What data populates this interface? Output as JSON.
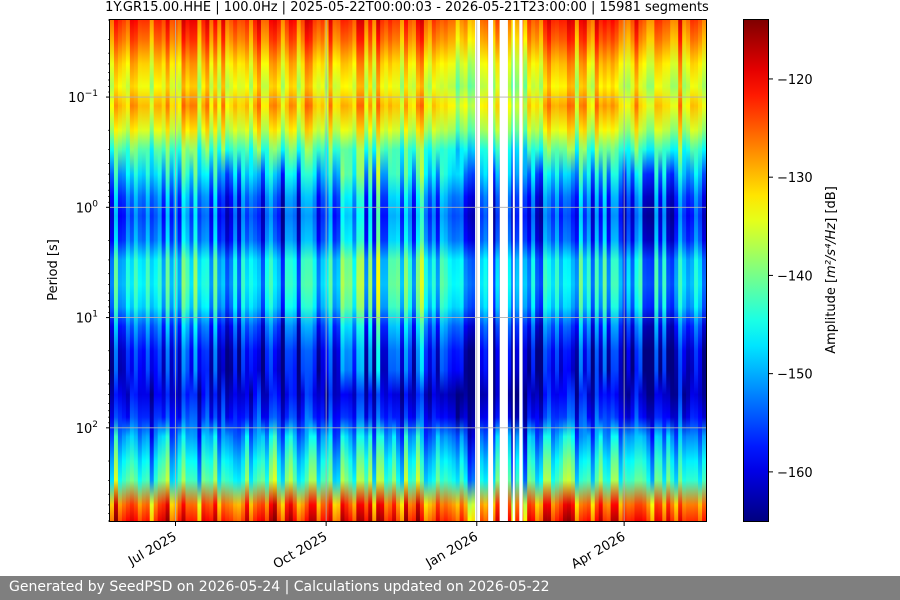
{
  "chart_data": {
    "type": "heatmap",
    "title": "1Y.GR15.00.HHE | 100.0Hz | 2025-05-22T00:00:03 - 2026-05-21T23:00:00 | 15981 segments",
    "xlabel": "",
    "ylabel": "Period [s]",
    "xlim": [
      "2025-05-22",
      "2026-05-21"
    ],
    "x_ticks": [
      {
        "date": "2025-07-01",
        "label": "Jul 2025"
      },
      {
        "date": "2025-10-01",
        "label": "Oct 2025"
      },
      {
        "date": "2026-01-01",
        "label": "Jan 2026"
      },
      {
        "date": "2026-04-01",
        "label": "Apr 2026"
      }
    ],
    "y_scale": "log",
    "y_inverted": true,
    "ylim": [
      0.02,
      700
    ],
    "y_ticks": [
      {
        "value": 0.1,
        "base": "10",
        "exp": "−1"
      },
      {
        "value": 1,
        "base": "10",
        "exp": "0"
      },
      {
        "value": 10,
        "base": "10",
        "exp": "1"
      },
      {
        "value": 100,
        "base": "10",
        "exp": "2"
      }
    ],
    "grid": true,
    "colorbar": {
      "label_prefix": "Amplitude [",
      "label_unit": "m²/s⁴/Hz",
      "label_suffix": "] [dB]",
      "colormap": "jet",
      "range": [
        -165,
        -114
      ],
      "ticks": [
        "−120",
        "−130",
        "−140",
        "−150",
        "−160"
      ],
      "tick_values": [
        -120,
        -130,
        -140,
        -150,
        -160
      ]
    },
    "data_gaps": [
      [
        "2025-12-31",
        "2026-01-03"
      ],
      [
        "2026-01-08",
        "2026-01-11"
      ],
      [
        "2026-01-15",
        "2026-01-20"
      ],
      [
        "2026-01-23",
        "2026-01-24"
      ],
      [
        "2026-01-27",
        "2026-01-29"
      ]
    ],
    "profile": {
      "period_s": [
        0.02,
        0.03,
        0.05,
        0.08,
        0.12,
        0.2,
        0.3,
        0.5,
        0.8,
        1.2,
        2,
        3,
        5,
        8,
        12,
        20,
        30,
        50,
        80,
        120,
        200,
        300,
        500,
        700
      ],
      "base_db": [
        -123,
        -126,
        -131,
        -134,
        -130,
        -135,
        -142,
        -150,
        -155,
        -157,
        -155,
        -149,
        -148,
        -150,
        -156,
        -160,
        -161,
        -160,
        -157,
        -150,
        -145,
        -142,
        -125,
        -121
      ]
    }
  },
  "footer": {
    "text": "Generated by SeedPSD on 2026-05-24 | Calculations updated on 2026-05-22"
  }
}
